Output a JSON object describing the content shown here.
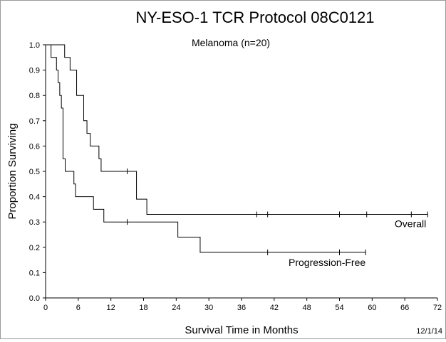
{
  "chart_data": {
    "type": "line",
    "step": true,
    "title": "NY-ESO-1 TCR Protocol 08C0121",
    "subtitle": "Melanoma (n=20)",
    "xlabel": "Survival Time in Months",
    "ylabel": "Proportion Surviving",
    "xlim": [
      0,
      72
    ],
    "ylim": [
      0,
      1
    ],
    "x_ticks": [
      0,
      6,
      12,
      18,
      24,
      30,
      36,
      42,
      48,
      54,
      60,
      66,
      72
    ],
    "y_ticks": [
      0.0,
      0.1,
      0.2,
      0.3,
      0.4,
      0.5,
      0.6,
      0.7,
      0.8,
      0.9,
      1.0
    ],
    "x_tick_labels": [
      "0",
      "6",
      "12",
      "18",
      "24",
      "30",
      "36",
      "42",
      "48",
      "54",
      "60",
      "66",
      "72"
    ],
    "y_tick_labels": [
      "0.0",
      "0.1",
      "0.2",
      "0.3",
      "0.4",
      "0.5",
      "0.6",
      "0.7",
      "0.8",
      "0.9",
      "1.0"
    ],
    "grid": false,
    "line_color": "#000000",
    "footer_date": "12/1/14",
    "series": [
      {
        "name": "Overall",
        "steps": [
          [
            0,
            1.0
          ],
          [
            3.5,
            0.95
          ],
          [
            4.5,
            0.9
          ],
          [
            5.7,
            0.8
          ],
          [
            7.0,
            0.7
          ],
          [
            7.6,
            0.65
          ],
          [
            8.2,
            0.6
          ],
          [
            9.8,
            0.55
          ],
          [
            10.2,
            0.5
          ],
          [
            16.7,
            0.39
          ],
          [
            18.6,
            0.33
          ],
          [
            70.2,
            0.33
          ]
        ],
        "censored": [
          [
            15.0,
            0.5
          ],
          [
            38.8,
            0.33
          ],
          [
            40.8,
            0.33
          ],
          [
            54.0,
            0.33
          ],
          [
            59.0,
            0.33
          ],
          [
            67.2,
            0.33
          ],
          [
            70.2,
            0.33
          ]
        ]
      },
      {
        "name": "Progression-Free",
        "steps": [
          [
            0,
            1.0
          ],
          [
            1.0,
            0.95
          ],
          [
            2.0,
            0.9
          ],
          [
            2.3,
            0.85
          ],
          [
            2.6,
            0.8
          ],
          [
            2.9,
            0.75
          ],
          [
            3.2,
            0.55
          ],
          [
            3.6,
            0.5
          ],
          [
            5.2,
            0.45
          ],
          [
            5.5,
            0.4
          ],
          [
            8.8,
            0.35
          ],
          [
            10.7,
            0.3
          ],
          [
            24.3,
            0.24
          ],
          [
            28.4,
            0.18
          ],
          [
            58.8,
            0.18
          ]
        ],
        "censored": [
          [
            15.0,
            0.3
          ],
          [
            40.8,
            0.18
          ],
          [
            54.0,
            0.18
          ],
          [
            58.8,
            0.18
          ]
        ]
      }
    ]
  }
}
